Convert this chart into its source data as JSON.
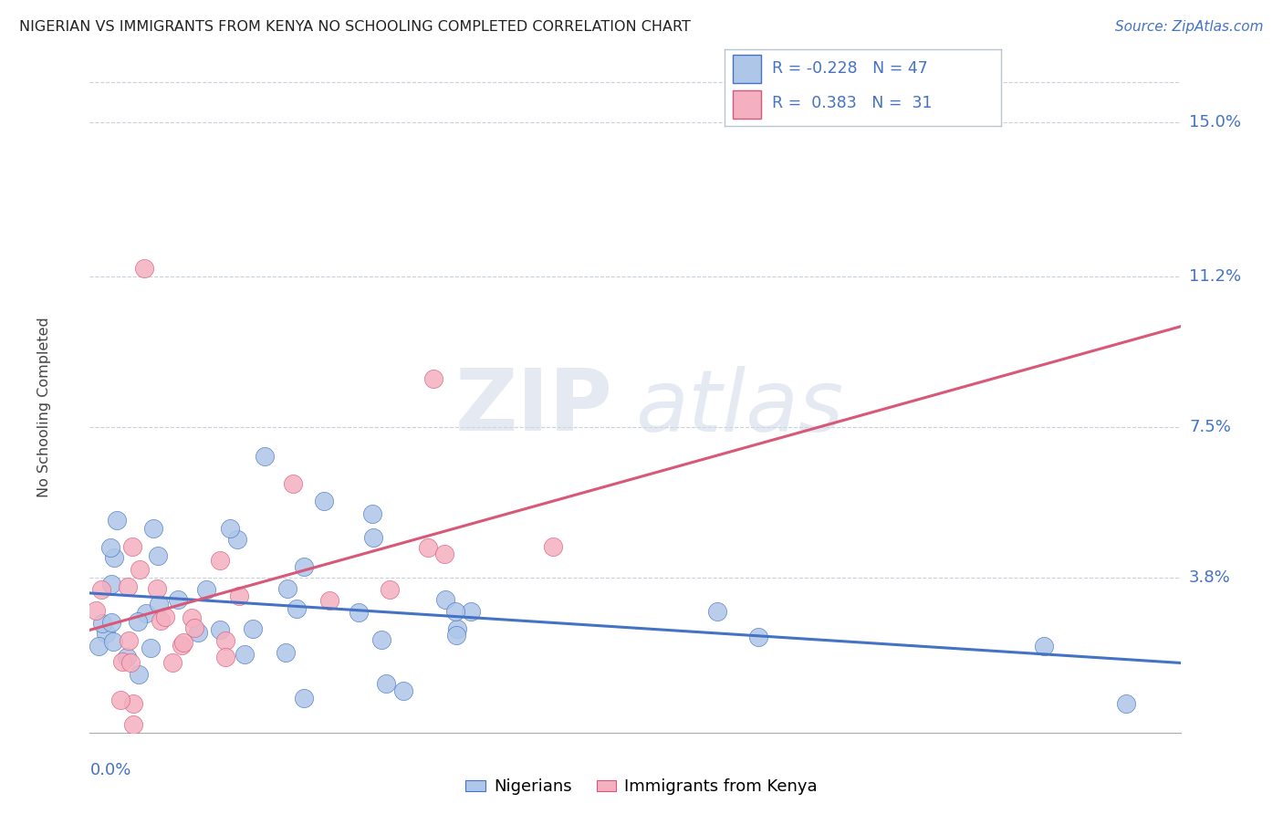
{
  "title": "NIGERIAN VS IMMIGRANTS FROM KENYA NO SCHOOLING COMPLETED CORRELATION CHART",
  "source": "Source: ZipAtlas.com",
  "ylabel": "No Schooling Completed",
  "ytick_labels": [
    "3.8%",
    "7.5%",
    "11.2%",
    "15.0%"
  ],
  "ytick_values": [
    0.038,
    0.075,
    0.112,
    0.15
  ],
  "xmin": 0.0,
  "xmax": 0.2,
  "ymin": 0.0,
  "ymax": 0.16,
  "legend_r1": "R = -0.228",
  "legend_n1": "N = 47",
  "legend_r2": "R =  0.383",
  "legend_n2": "N =  31",
  "color_nigerian": "#aec6e8",
  "color_kenya": "#f4b0c0",
  "line_color_nigerian": "#4472c4",
  "line_color_kenya": "#d85878",
  "watermark_zip": "ZIP",
  "watermark_atlas": "atlas",
  "legend1_label": "Nigerians",
  "legend2_label": "Immigrants from Kenya"
}
